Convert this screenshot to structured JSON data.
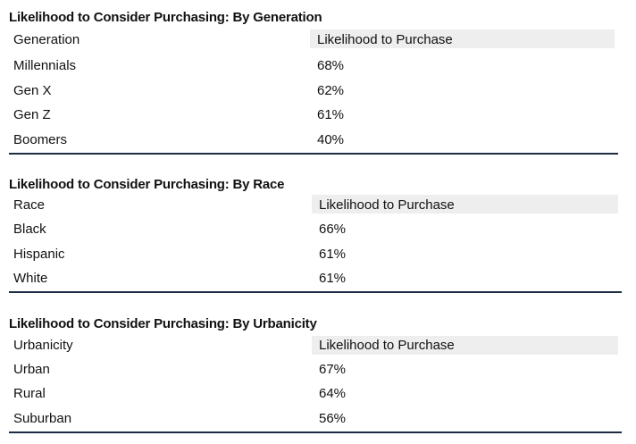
{
  "sections": [
    {
      "title": "Likelihood to Consider Purchasing: By Generation",
      "col1_header": "Generation",
      "col2_header": "Likelihood to Purchase",
      "rows": [
        {
          "label": "Millennials",
          "value": "68%"
        },
        {
          "label": "Gen X",
          "value": "62%"
        },
        {
          "label": "Gen Z",
          "value": "61%"
        },
        {
          "label": "Boomers",
          "value": "40%"
        }
      ]
    },
    {
      "title": "Likelihood to Consider Purchasing: By Race",
      "col1_header": "Race",
      "col2_header": "Likelihood to Purchase",
      "rows": [
        {
          "label": "Black",
          "value": "66%"
        },
        {
          "label": "Hispanic",
          "value": "61%"
        },
        {
          "label": "White",
          "value": "61%"
        }
      ]
    },
    {
      "title": "Likelihood to Consider Purchasing: By Urbanicity",
      "col1_header": "Urbanicity",
      "col2_header": "Likelihood to Purchase",
      "rows": [
        {
          "label": "Urban",
          "value": "67%"
        },
        {
          "label": "Rural",
          "value": "64%"
        },
        {
          "label": "Suburban",
          "value": "56%"
        }
      ]
    }
  ],
  "colors": {
    "rule": "#1d2b43",
    "header_bg": "#eeeeee",
    "text": "#111111"
  }
}
